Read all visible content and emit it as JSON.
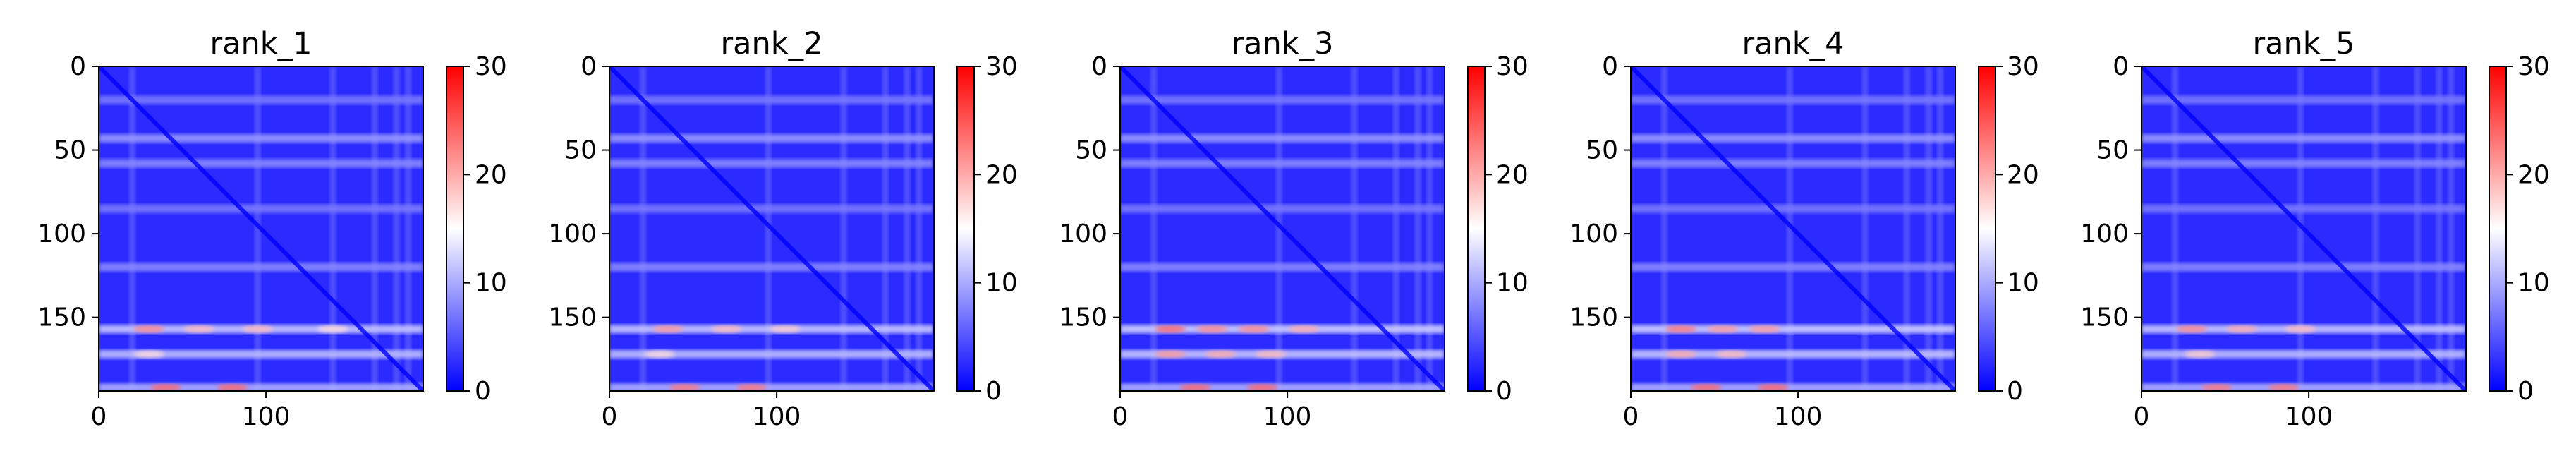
{
  "chart_data": [
    {
      "type": "heatmap",
      "title": "rank_1",
      "xlim": [
        0,
        194
      ],
      "ylim": [
        194,
        0
      ],
      "xticks": [
        0,
        100
      ],
      "yticks": [
        0,
        50,
        100,
        150
      ],
      "colorbar": {
        "min": 0,
        "max": 30,
        "ticks": [
          0,
          10,
          20,
          30
        ],
        "colormap": [
          "#0000ff",
          "#ffffff",
          "#ff0000"
        ]
      },
      "diagonal": true,
      "bright_rows": [
        {
          "y": 20,
          "intensity": 0.35
        },
        {
          "y": 43,
          "intensity": 0.55
        },
        {
          "y": 58,
          "intensity": 0.45
        },
        {
          "y": 85,
          "intensity": 0.35
        },
        {
          "y": 120,
          "intensity": 0.45
        },
        {
          "y": 157,
          "intensity": 0.85
        },
        {
          "y": 172,
          "intensity": 0.8
        },
        {
          "y": 192,
          "intensity": 0.7
        }
      ],
      "bright_cols": [
        20,
        95,
        140,
        165,
        178,
        185
      ],
      "hot_spots": [
        {
          "x": 30,
          "y": 157,
          "value": 22
        },
        {
          "x": 60,
          "y": 157,
          "value": 19
        },
        {
          "x": 95,
          "y": 157,
          "value": 19
        },
        {
          "x": 140,
          "y": 157,
          "value": 17
        },
        {
          "x": 30,
          "y": 172,
          "value": 17
        },
        {
          "x": 40,
          "y": 192,
          "value": 24
        },
        {
          "x": 80,
          "y": 192,
          "value": 24
        }
      ]
    },
    {
      "type": "heatmap",
      "title": "rank_2",
      "xlim": [
        0,
        194
      ],
      "ylim": [
        194,
        0
      ],
      "xticks": [
        0,
        100
      ],
      "yticks": [
        0,
        50,
        100,
        150
      ],
      "colorbar": {
        "min": 0,
        "max": 30,
        "ticks": [
          0,
          10,
          20,
          30
        ],
        "colormap": [
          "#0000ff",
          "#ffffff",
          "#ff0000"
        ]
      },
      "diagonal": true,
      "bright_rows": [
        {
          "y": 20,
          "intensity": 0.35
        },
        {
          "y": 43,
          "intensity": 0.55
        },
        {
          "y": 58,
          "intensity": 0.45
        },
        {
          "y": 85,
          "intensity": 0.35
        },
        {
          "y": 120,
          "intensity": 0.45
        },
        {
          "y": 157,
          "intensity": 0.85
        },
        {
          "y": 172,
          "intensity": 0.8
        },
        {
          "y": 192,
          "intensity": 0.7
        }
      ],
      "bright_cols": [
        20,
        95,
        140,
        165,
        178,
        185
      ],
      "hot_spots": [
        {
          "x": 35,
          "y": 157,
          "value": 21
        },
        {
          "x": 70,
          "y": 157,
          "value": 19
        },
        {
          "x": 105,
          "y": 157,
          "value": 18
        },
        {
          "x": 30,
          "y": 172,
          "value": 17
        },
        {
          "x": 45,
          "y": 192,
          "value": 23
        },
        {
          "x": 85,
          "y": 192,
          "value": 23
        }
      ]
    },
    {
      "type": "heatmap",
      "title": "rank_3",
      "xlim": [
        0,
        194
      ],
      "ylim": [
        194,
        0
      ],
      "xticks": [
        0,
        100
      ],
      "yticks": [
        0,
        50,
        100,
        150
      ],
      "colorbar": {
        "min": 0,
        "max": 30,
        "ticks": [
          0,
          10,
          20,
          30
        ],
        "colormap": [
          "#0000ff",
          "#ffffff",
          "#ff0000"
        ]
      },
      "diagonal": true,
      "bright_rows": [
        {
          "y": 20,
          "intensity": 0.35
        },
        {
          "y": 43,
          "intensity": 0.55
        },
        {
          "y": 58,
          "intensity": 0.45
        },
        {
          "y": 85,
          "intensity": 0.35
        },
        {
          "y": 120,
          "intensity": 0.45
        },
        {
          "y": 157,
          "intensity": 0.9
        },
        {
          "y": 172,
          "intensity": 0.85
        },
        {
          "y": 192,
          "intensity": 0.7
        }
      ],
      "bright_cols": [
        20,
        95,
        140,
        165,
        178,
        185
      ],
      "hot_spots": [
        {
          "x": 30,
          "y": 157,
          "value": 24
        },
        {
          "x": 55,
          "y": 157,
          "value": 22
        },
        {
          "x": 80,
          "y": 157,
          "value": 22
        },
        {
          "x": 110,
          "y": 157,
          "value": 20
        },
        {
          "x": 30,
          "y": 172,
          "value": 21
        },
        {
          "x": 60,
          "y": 172,
          "value": 20
        },
        {
          "x": 90,
          "y": 172,
          "value": 19
        },
        {
          "x": 45,
          "y": 192,
          "value": 24
        },
        {
          "x": 85,
          "y": 192,
          "value": 24
        }
      ]
    },
    {
      "type": "heatmap",
      "title": "rank_4",
      "xlim": [
        0,
        194
      ],
      "ylim": [
        194,
        0
      ],
      "xticks": [
        0,
        100
      ],
      "yticks": [
        0,
        50,
        100,
        150
      ],
      "colorbar": {
        "min": 0,
        "max": 30,
        "ticks": [
          0,
          10,
          20,
          30
        ],
        "colormap": [
          "#0000ff",
          "#ffffff",
          "#ff0000"
        ]
      },
      "diagonal": true,
      "bright_rows": [
        {
          "y": 20,
          "intensity": 0.35
        },
        {
          "y": 43,
          "intensity": 0.55
        },
        {
          "y": 58,
          "intensity": 0.45
        },
        {
          "y": 85,
          "intensity": 0.35
        },
        {
          "y": 120,
          "intensity": 0.45
        },
        {
          "y": 157,
          "intensity": 0.9
        },
        {
          "y": 172,
          "intensity": 0.85
        },
        {
          "y": 192,
          "intensity": 0.7
        }
      ],
      "bright_cols": [
        20,
        95,
        140,
        165,
        178,
        185
      ],
      "hot_spots": [
        {
          "x": 30,
          "y": 157,
          "value": 23
        },
        {
          "x": 55,
          "y": 157,
          "value": 21
        },
        {
          "x": 80,
          "y": 157,
          "value": 21
        },
        {
          "x": 30,
          "y": 172,
          "value": 20
        },
        {
          "x": 60,
          "y": 172,
          "value": 19
        },
        {
          "x": 45,
          "y": 192,
          "value": 24
        },
        {
          "x": 85,
          "y": 192,
          "value": 24
        }
      ]
    },
    {
      "type": "heatmap",
      "title": "rank_5",
      "xlim": [
        0,
        194
      ],
      "ylim": [
        194,
        0
      ],
      "xticks": [
        0,
        100
      ],
      "yticks": [
        0,
        50,
        100,
        150
      ],
      "colorbar": {
        "min": 0,
        "max": 30,
        "ticks": [
          0,
          10,
          20,
          30
        ],
        "colormap": [
          "#0000ff",
          "#ffffff",
          "#ff0000"
        ]
      },
      "diagonal": true,
      "bright_rows": [
        {
          "y": 20,
          "intensity": 0.35
        },
        {
          "y": 43,
          "intensity": 0.55
        },
        {
          "y": 58,
          "intensity": 0.45
        },
        {
          "y": 85,
          "intensity": 0.35
        },
        {
          "y": 120,
          "intensity": 0.45
        },
        {
          "y": 157,
          "intensity": 0.85
        },
        {
          "y": 172,
          "intensity": 0.8
        },
        {
          "y": 192,
          "intensity": 0.7
        }
      ],
      "bright_cols": [
        20,
        95,
        140,
        165,
        178,
        185
      ],
      "hot_spots": [
        {
          "x": 30,
          "y": 157,
          "value": 22
        },
        {
          "x": 60,
          "y": 157,
          "value": 20
        },
        {
          "x": 95,
          "y": 157,
          "value": 19
        },
        {
          "x": 35,
          "y": 172,
          "value": 18
        },
        {
          "x": 45,
          "y": 192,
          "value": 23
        },
        {
          "x": 85,
          "y": 192,
          "value": 23
        }
      ]
    }
  ]
}
